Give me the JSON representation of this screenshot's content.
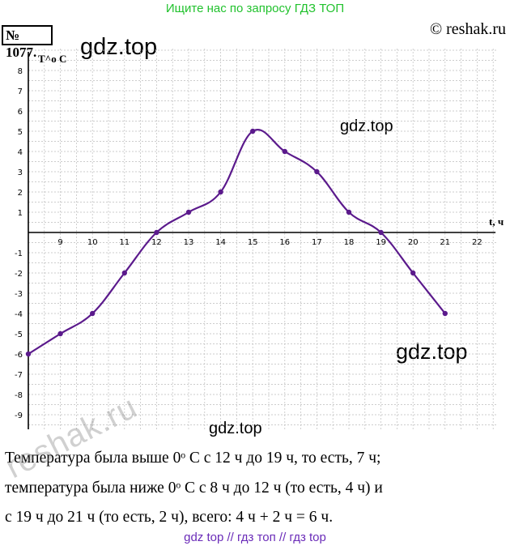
{
  "banner": "Ищите нас по запросу ГДЗ ТОП",
  "task_number": "№ 1077.",
  "copyright": "© reshak.ru",
  "watermarks": [
    "gdz.top",
    "gdz.top",
    "gdz.top",
    "gdz.top"
  ],
  "reshak_watermark": "reshak.ru",
  "chart_data": {
    "type": "line",
    "xlabel": "t, ч",
    "ylabel": "T^o C",
    "x_ticks": [
      9,
      10,
      11,
      12,
      13,
      14,
      15,
      16,
      17,
      18,
      19,
      20,
      21,
      22
    ],
    "y_ticks": [
      8,
      7,
      6,
      5,
      4,
      3,
      2,
      1,
      -1,
      -2,
      -3,
      -4,
      -5,
      -6,
      -7,
      -8,
      -9
    ],
    "xlim": [
      8,
      22.5
    ],
    "ylim": [
      -10,
      9
    ],
    "grid": true,
    "series": [
      {
        "x": [
          8,
          9,
          10,
          11,
          12,
          13,
          14,
          15,
          16,
          17,
          18,
          19,
          20,
          21
        ],
        "y": [
          -6,
          -5,
          -4,
          -2,
          0,
          1,
          2,
          5,
          4,
          3,
          1,
          0,
          -2,
          -4
        ]
      }
    ],
    "line_color": "#5b1a8c"
  },
  "answer_lines": [
    "Температура была выше 0ᵒ C с 12 ч до 19 ч, то есть, 7 ч;",
    "температура была ниже 0ᵒ C с 8 ч до 12 ч (то есть, 4 ч) и",
    "с 19 ч до 21 ч (то есть, 2 ч), всего: 4 ч + 2 ч = 6 ч."
  ],
  "footer": "gdz top  //  гдз топ  //  гдз top"
}
